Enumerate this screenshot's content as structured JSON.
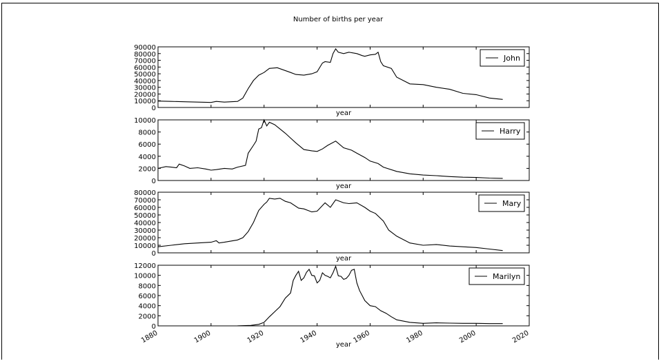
{
  "title": "Number of births per year",
  "colors": {
    "line": "#000000",
    "background": "#ffffff",
    "frame": "#000000"
  },
  "chart_data": [
    {
      "type": "line",
      "xlim": [
        1880,
        2020
      ],
      "ylim": [
        0,
        90000
      ],
      "yticks": [
        0,
        10000,
        20000,
        30000,
        40000,
        50000,
        60000,
        70000,
        80000,
        90000
      ],
      "xlabel": "year",
      "legend_position": "top-right",
      "grid": false,
      "series": [
        {
          "name": "John",
          "x": [
            1880,
            1885,
            1890,
            1895,
            1900,
            1902,
            1905,
            1910,
            1912,
            1914,
            1916,
            1918,
            1920,
            1922,
            1925,
            1930,
            1932,
            1935,
            1938,
            1940,
            1942,
            1943,
            1945,
            1946,
            1947,
            1948,
            1950,
            1952,
            1955,
            1957,
            1958,
            1960,
            1962,
            1963,
            1964,
            1965,
            1968,
            1970,
            1975,
            1980,
            1985,
            1990,
            1995,
            2000,
            2005,
            2010
          ],
          "y": [
            9500,
            9000,
            8500,
            8000,
            7500,
            9000,
            8000,
            9000,
            14000,
            28000,
            40000,
            48000,
            52000,
            58000,
            59000,
            52000,
            49000,
            48000,
            50000,
            53000,
            66000,
            68000,
            67000,
            80000,
            87000,
            82000,
            80000,
            82000,
            80000,
            77000,
            76000,
            78000,
            79000,
            82000,
            68000,
            62000,
            58000,
            45000,
            35000,
            34000,
            30000,
            27000,
            21000,
            19000,
            14000,
            12000
          ]
        }
      ]
    },
    {
      "type": "line",
      "xlim": [
        1880,
        2020
      ],
      "ylim": [
        0,
        10000
      ],
      "yticks": [
        0,
        2000,
        4000,
        6000,
        8000,
        10000
      ],
      "xlabel": "year",
      "legend_position": "top-right",
      "grid": false,
      "series": [
        {
          "name": "Harry",
          "x": [
            1880,
            1883,
            1885,
            1887,
            1888,
            1890,
            1892,
            1895,
            1898,
            1900,
            1902,
            1905,
            1908,
            1910,
            1913,
            1914,
            1916,
            1917,
            1918,
            1919,
            1920,
            1921,
            1922,
            1924,
            1926,
            1928,
            1930,
            1932,
            1935,
            1938,
            1940,
            1942,
            1944,
            1947,
            1950,
            1953,
            1955,
            1958,
            1960,
            1963,
            1965,
            1970,
            1975,
            1980,
            1985,
            1990,
            1995,
            2000,
            2005,
            2010
          ],
          "y": [
            2000,
            2300,
            2200,
            2100,
            2700,
            2400,
            2000,
            2100,
            1900,
            1700,
            1800,
            2000,
            1900,
            2200,
            2500,
            4500,
            5800,
            6500,
            8500,
            8700,
            10000,
            9000,
            9600,
            9200,
            8500,
            7800,
            7000,
            6200,
            5100,
            4900,
            4800,
            5200,
            5800,
            6500,
            5400,
            5000,
            4500,
            3800,
            3200,
            2800,
            2200,
            1500,
            1100,
            900,
            800,
            650,
            550,
            500,
            400,
            350
          ]
        }
      ]
    },
    {
      "type": "line",
      "xlim": [
        1880,
        2020
      ],
      "ylim": [
        0,
        80000
      ],
      "yticks": [
        0,
        10000,
        20000,
        30000,
        40000,
        50000,
        60000,
        70000,
        80000
      ],
      "xlabel": "year",
      "legend_position": "top-right",
      "grid": false,
      "series": [
        {
          "name": "Mary",
          "x": [
            1880,
            1885,
            1890,
            1895,
            1900,
            1902,
            1903,
            1905,
            1910,
            1912,
            1914,
            1916,
            1918,
            1920,
            1921,
            1922,
            1924,
            1926,
            1928,
            1930,
            1933,
            1935,
            1938,
            1940,
            1943,
            1945,
            1947,
            1950,
            1952,
            1955,
            1958,
            1960,
            1962,
            1965,
            1967,
            1970,
            1975,
            1980,
            1985,
            1990,
            1995,
            2000,
            2005,
            2010
          ],
          "y": [
            8000,
            10000,
            12000,
            13000,
            14000,
            16000,
            13000,
            14000,
            17000,
            20000,
            28000,
            40000,
            56000,
            64000,
            67000,
            72000,
            71000,
            72000,
            68000,
            66000,
            59000,
            58000,
            54000,
            55000,
            66000,
            60000,
            70000,
            66000,
            65000,
            66000,
            60000,
            55000,
            52000,
            42000,
            30000,
            22000,
            13000,
            10000,
            11000,
            9000,
            8000,
            7000,
            5000,
            3000
          ]
        }
      ]
    },
    {
      "type": "line",
      "xlim": [
        1880,
        2020
      ],
      "ylim": [
        0,
        12000
      ],
      "yticks": [
        0,
        2000,
        4000,
        6000,
        8000,
        10000,
        12000
      ],
      "xticks": [
        1880,
        1900,
        1920,
        1940,
        1960,
        1980,
        2000,
        2020
      ],
      "xlabel": "year",
      "legend_position": "top-right",
      "grid": false,
      "series": [
        {
          "name": "Marilyn",
          "x": [
            1880,
            1900,
            1910,
            1915,
            1918,
            1920,
            1922,
            1924,
            1926,
            1928,
            1930,
            1931,
            1932,
            1933,
            1934,
            1935,
            1936,
            1937,
            1938,
            1939,
            1940,
            1941,
            1942,
            1943,
            1944,
            1945,
            1946,
            1947,
            1948,
            1949,
            1950,
            1951,
            1952,
            1953,
            1954,
            1955,
            1956,
            1958,
            1960,
            1962,
            1964,
            1966,
            1968,
            1970,
            1975,
            1980,
            1985,
            1990,
            1995,
            2000,
            2005,
            2010
          ],
          "y": [
            0,
            0,
            20,
            100,
            300,
            700,
            1800,
            2800,
            3800,
            5500,
            6500,
            9000,
            10000,
            10800,
            9000,
            9500,
            10600,
            11200,
            10000,
            9900,
            8500,
            9000,
            10500,
            10000,
            9800,
            9500,
            10500,
            11800,
            9900,
            9800,
            9200,
            9400,
            10000,
            11000,
            11200,
            8500,
            7000,
            5000,
            4000,
            3800,
            3000,
            2500,
            1800,
            1200,
            700,
            500,
            600,
            550,
            500,
            500,
            450,
            450
          ]
        }
      ]
    }
  ]
}
